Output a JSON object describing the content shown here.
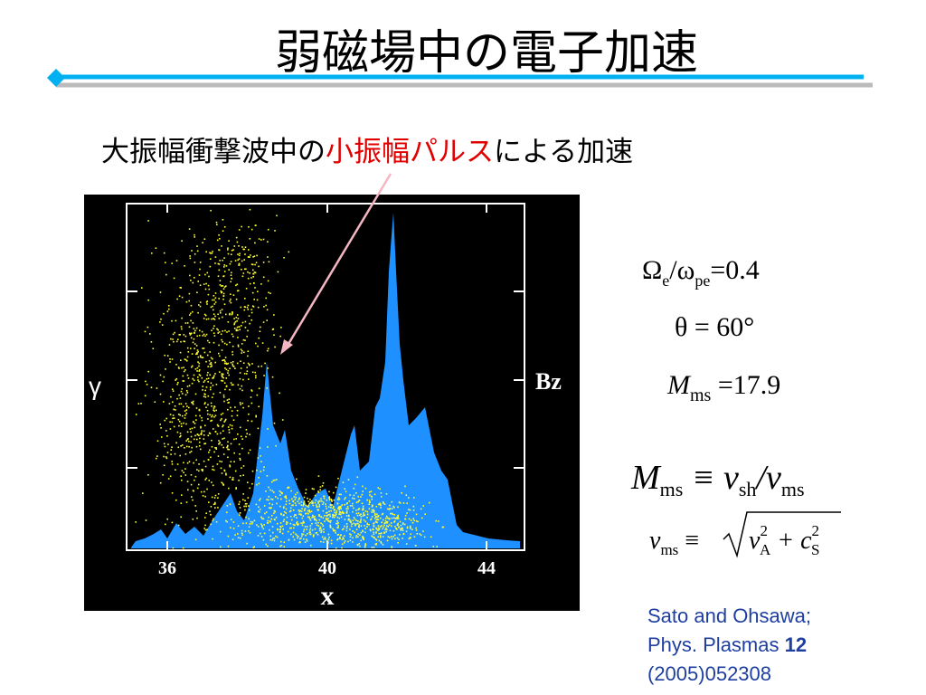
{
  "title": "弱磁場中の電子加速",
  "subtitle": {
    "before": "大振幅衝撃波中の",
    "highlight": "小振幅パルス",
    "after": "による加速"
  },
  "figure": {
    "y_label": "γ",
    "y2_label": "Bz",
    "x_label": "x",
    "x_ticks": [
      "36",
      "40",
      "44"
    ]
  },
  "params": {
    "ratio": {
      "omega": "Ω",
      "omega_sub": "e",
      "slash": "/ω",
      "slash_sub": "pe",
      "value": "=0.4"
    },
    "theta": "θ = 60°",
    "mach": {
      "symbol": "M",
      "sub": "ms",
      "value": " =17.9"
    }
  },
  "formulas": {
    "def1": {
      "m": "M",
      "m_sub": "ms",
      "eq": " ≡ v",
      "v_sub": "sh",
      "slash": "/v",
      "v2_sub": "ms"
    },
    "def2": {
      "v": "v",
      "v_sub": "ms",
      "eq": " ≡ ",
      "va": "v",
      "va_sup": "2",
      "va_sub": "A",
      "plus": " + c",
      "cs_sup": "2",
      "cs_sub": "S"
    }
  },
  "citation": {
    "line1": "Sato and Ohsawa;",
    "line2": "Phys. Plasmas ",
    "volume": "12",
    "line3": "(2005)052308"
  }
}
